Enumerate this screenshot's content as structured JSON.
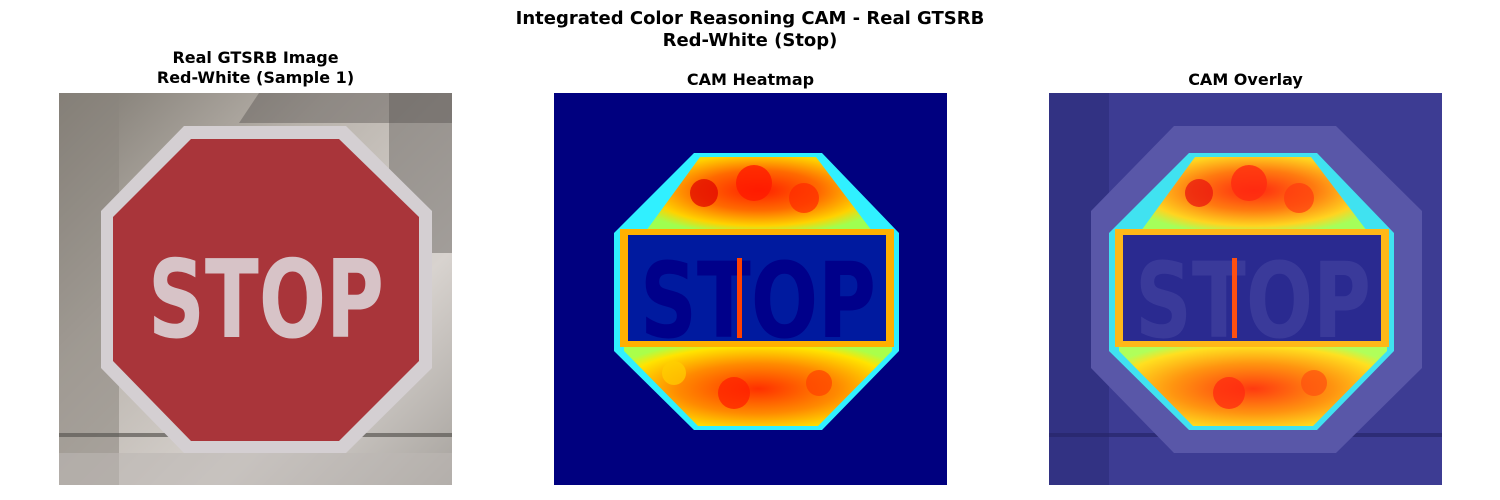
{
  "figure": {
    "suptitle_line1": "Integrated Color Reasoning CAM - Real GTSRB",
    "suptitle_line2": "Red-White (Stop)"
  },
  "panels": [
    {
      "title_line1": "Real GTSRB Image",
      "title_line2": "Red-White (Sample 1)"
    },
    {
      "title_line1": "CAM Heatmap",
      "title_line2": ""
    },
    {
      "title_line1": "CAM Overlay",
      "title_line2": ""
    }
  ],
  "sign": {
    "text": "STOP"
  },
  "colors": {
    "sign_red": "#a9353a",
    "sign_border": "#c9c5c7",
    "cam_background": "#00007f",
    "overlay_tint": "#3a3a9a"
  }
}
